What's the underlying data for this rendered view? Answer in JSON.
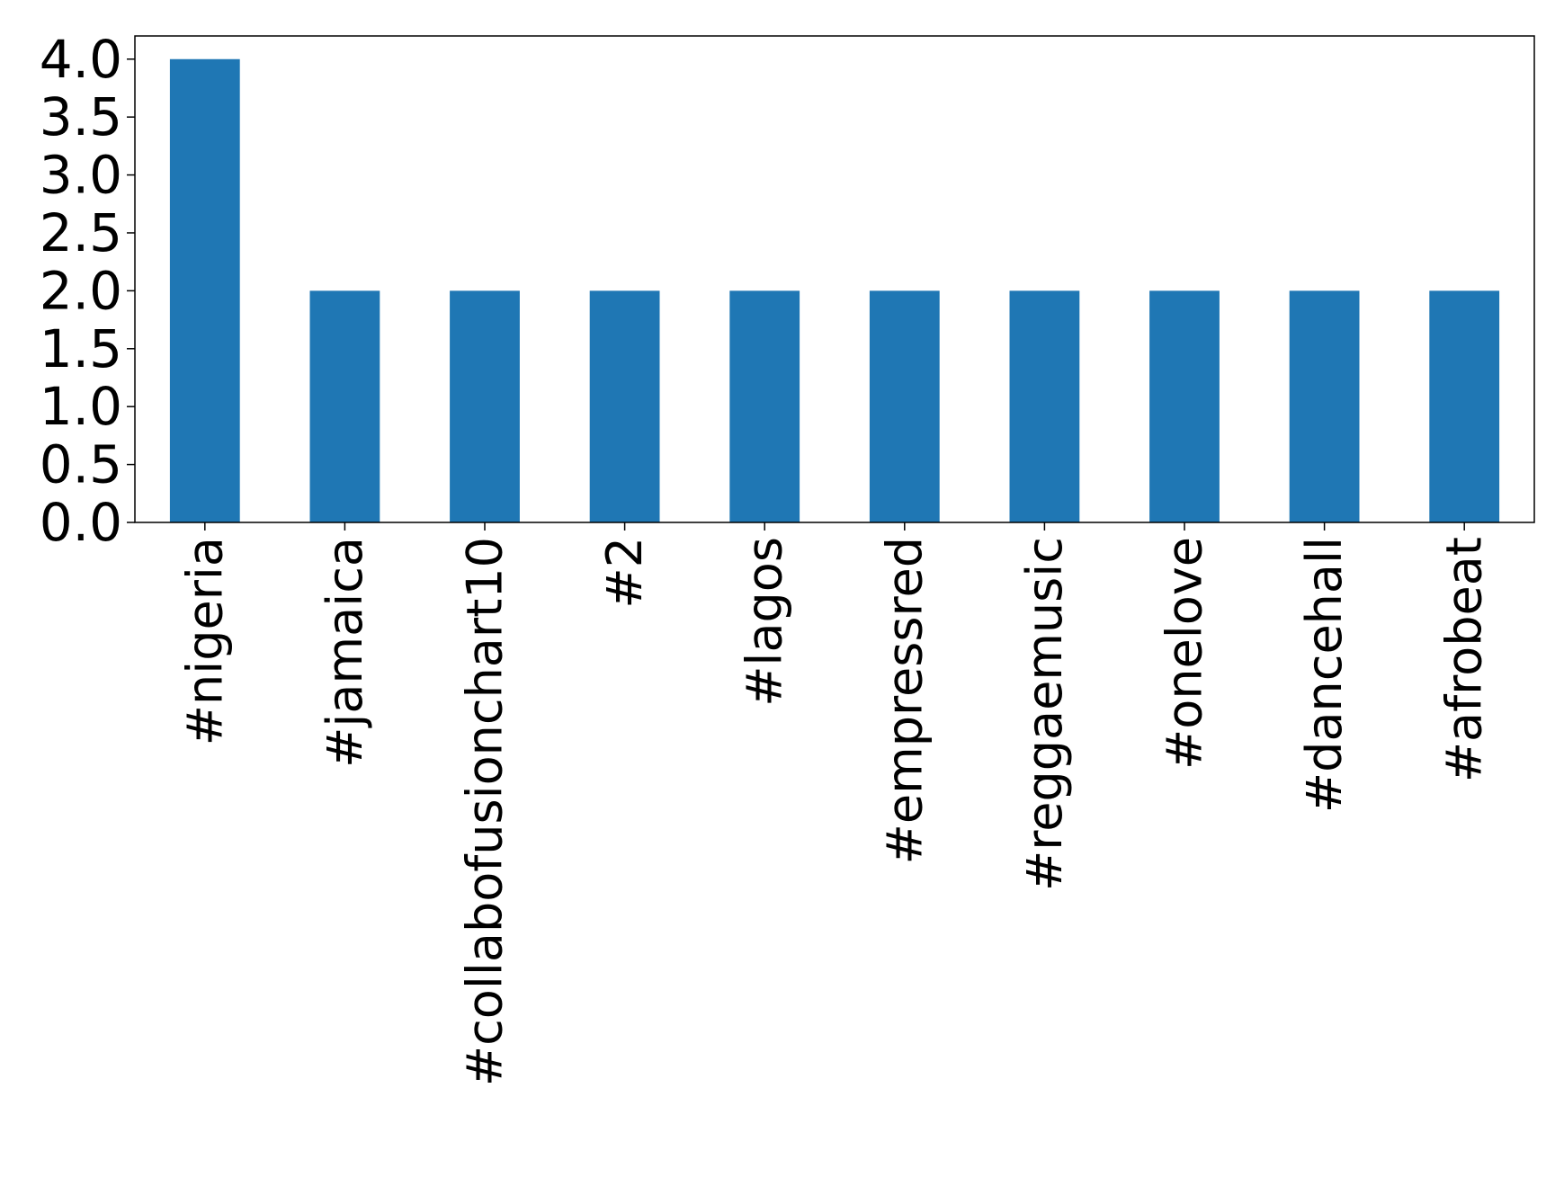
{
  "chart_data": {
    "type": "bar",
    "title": "",
    "xlabel": "",
    "ylabel": "",
    "categories": [
      "#nigeria",
      "#jamaica",
      "#collabofusionchart10",
      "#2",
      "#lagos",
      "#empressred",
      "#reggaemusic",
      "#onelove",
      "#dancehall",
      "#afrobeat"
    ],
    "values": [
      4,
      2,
      2,
      2,
      2,
      2,
      2,
      2,
      2,
      2
    ],
    "ylim": [
      0,
      4.2
    ],
    "yticks": [
      0.0,
      0.5,
      1.0,
      1.5,
      2.0,
      2.5,
      3.0,
      3.5,
      4.0
    ],
    "ytick_labels": [
      "0.0",
      "0.5",
      "1.0",
      "1.5",
      "2.0",
      "2.5",
      "3.0",
      "3.5",
      "4.0"
    ],
    "grid": false,
    "legend": "none",
    "bar_color": "#1f77b4",
    "axis_color": "#000000"
  }
}
